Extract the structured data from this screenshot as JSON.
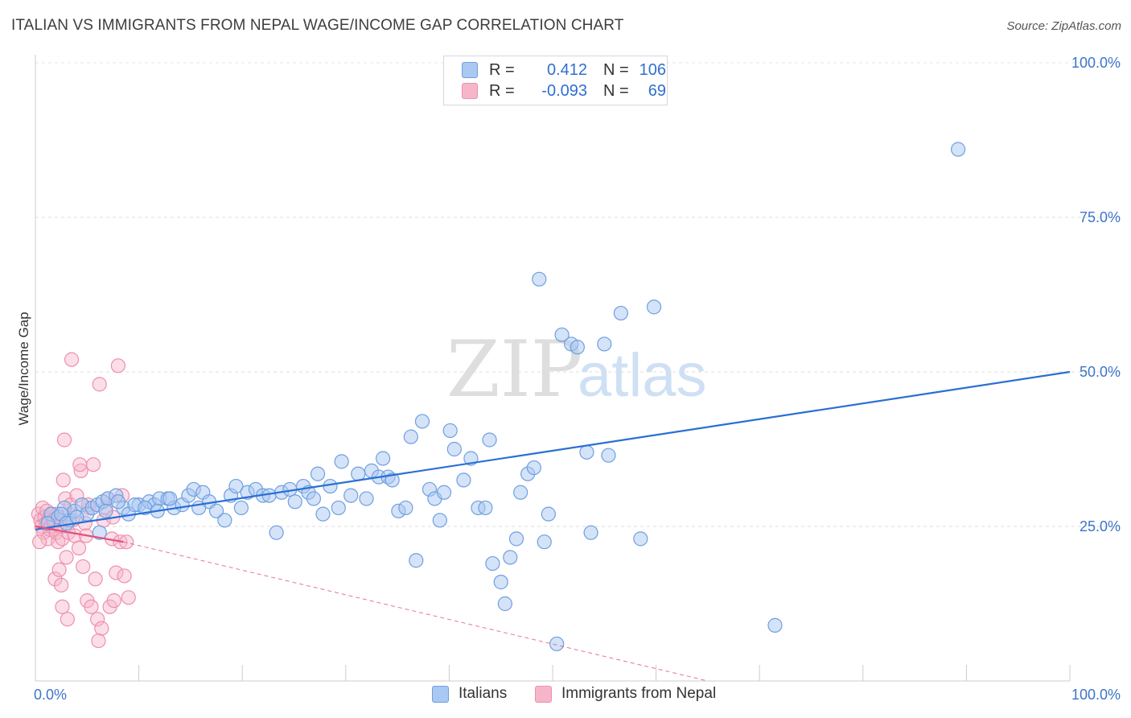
{
  "title": "ITALIAN VS IMMIGRANTS FROM NEPAL WAGE/INCOME GAP CORRELATION CHART",
  "source": "Source: ZipAtlas.com",
  "watermark": {
    "zip": "ZIP",
    "atlas": "atlas"
  },
  "legend": {
    "italians": {
      "r_label": "R =",
      "r_value": "0.412",
      "n_label": "N =",
      "n_value": "106"
    },
    "nepal": {
      "r_label": "R =",
      "r_value": "-0.093",
      "n_label": "N =",
      "n_value": "69"
    }
  },
  "bottom_legend": {
    "italians": "Italians",
    "nepal": "Immigrants from Nepal"
  },
  "colors": {
    "blue_fill": "#a9c8f2",
    "blue_stroke": "#6f9fe0",
    "blue_line": "#2a6fd3",
    "pink_fill": "#f6b6ca",
    "pink_stroke": "#ef8fae",
    "pink_line": "#e0517f",
    "axis_text": "#3d74c9"
  },
  "chart_data": {
    "type": "scatter",
    "title": "ITALIAN VS IMMIGRANTS FROM NEPAL WAGE/INCOME GAP CORRELATION CHART",
    "xlabel": "",
    "ylabel": "Wage/Income Gap",
    "xlim": [
      0,
      100
    ],
    "ylim": [
      0,
      100
    ],
    "x_tick_labels": [
      "0.0%",
      "100.0%"
    ],
    "y_ticks": [
      25,
      50,
      75,
      100
    ],
    "y_tick_labels": [
      "25.0%",
      "50.0%",
      "75.0%",
      "100.0%"
    ],
    "series": [
      {
        "name": "Italians",
        "points": [
          [
            1.5,
            27
          ],
          [
            2.2,
            26.5
          ],
          [
            2.8,
            28
          ],
          [
            3.3,
            26
          ],
          [
            3.8,
            27.5
          ],
          [
            4.5,
            28.5
          ],
          [
            5,
            27
          ],
          [
            5.5,
            28
          ],
          [
            6,
            28.5
          ],
          [
            6.5,
            29
          ],
          [
            7,
            29.5
          ],
          [
            7.8,
            30
          ],
          [
            8.5,
            28
          ],
          [
            9,
            27
          ],
          [
            10,
            28.5
          ],
          [
            11,
            29
          ],
          [
            11.5,
            28.5
          ],
          [
            12,
            29.5
          ],
          [
            12.8,
            29.5
          ],
          [
            13.4,
            28
          ],
          [
            14.2,
            28.5
          ],
          [
            14.8,
            30
          ],
          [
            15.3,
            31
          ],
          [
            16.2,
            30.5
          ],
          [
            16.8,
            29
          ],
          [
            17.5,
            27.5
          ],
          [
            18.3,
            26
          ],
          [
            18.9,
            30
          ],
          [
            19.4,
            31.5
          ],
          [
            19.9,
            28
          ],
          [
            20.5,
            30.5
          ],
          [
            21.3,
            31
          ],
          [
            22,
            30
          ],
          [
            22.6,
            30
          ],
          [
            23.3,
            24
          ],
          [
            23.8,
            30.5
          ],
          [
            24.6,
            31
          ],
          [
            25.1,
            29
          ],
          [
            25.9,
            31.5
          ],
          [
            26.4,
            30.5
          ],
          [
            26.9,
            29.5
          ],
          [
            27.3,
            33.5
          ],
          [
            27.8,
            27
          ],
          [
            28.5,
            31.5
          ],
          [
            29.3,
            28
          ],
          [
            29.6,
            35.5
          ],
          [
            30.5,
            30
          ],
          [
            31.2,
            33.5
          ],
          [
            32,
            29.5
          ],
          [
            32.5,
            34
          ],
          [
            33.2,
            33
          ],
          [
            33.6,
            36
          ],
          [
            34.1,
            33
          ],
          [
            34.5,
            32.5
          ],
          [
            35.1,
            27.5
          ],
          [
            35.8,
            28
          ],
          [
            36.3,
            39.5
          ],
          [
            36.8,
            19.5
          ],
          [
            37.4,
            42
          ],
          [
            38.1,
            31
          ],
          [
            38.6,
            29.5
          ],
          [
            39.1,
            26
          ],
          [
            39.5,
            30.5
          ],
          [
            40.1,
            40.5
          ],
          [
            40.5,
            37.5
          ],
          [
            41.4,
            32.5
          ],
          [
            42.1,
            36
          ],
          [
            42.8,
            28
          ],
          [
            43.5,
            28
          ],
          [
            43.9,
            39
          ],
          [
            44.2,
            19
          ],
          [
            45,
            16
          ],
          [
            45.4,
            12.5
          ],
          [
            45.9,
            20
          ],
          [
            46.5,
            23
          ],
          [
            46.9,
            30.5
          ],
          [
            47.6,
            33.5
          ],
          [
            48.2,
            34.5
          ],
          [
            48.7,
            65
          ],
          [
            49.2,
            22.5
          ],
          [
            49.6,
            27
          ],
          [
            50.4,
            6
          ],
          [
            50.9,
            56
          ],
          [
            51.8,
            54.5
          ],
          [
            52.4,
            54
          ],
          [
            53.3,
            37
          ],
          [
            53.7,
            24
          ],
          [
            55,
            54.5
          ],
          [
            55.4,
            36.5
          ],
          [
            56.6,
            59.5
          ],
          [
            58.5,
            23
          ],
          [
            59.8,
            60.5
          ],
          [
            71.5,
            9
          ],
          [
            89.2,
            86
          ],
          [
            2.5,
            27
          ],
          [
            3,
            25.5
          ],
          [
            4,
            26.5
          ],
          [
            6.8,
            27.5
          ],
          [
            8,
            29
          ],
          [
            9.6,
            28.5
          ],
          [
            10.6,
            28
          ],
          [
            11.8,
            27.5
          ],
          [
            13,
            29.5
          ],
          [
            15.8,
            28
          ],
          [
            1.2,
            25.5
          ],
          [
            6.2,
            24
          ]
        ],
        "trend": {
          "x": [
            0,
            100
          ],
          "y": [
            24.5,
            50
          ]
        }
      },
      {
        "name": "Immigrants from Nepal",
        "points": [
          [
            0.3,
            27
          ],
          [
            0.5,
            26
          ],
          [
            0.6,
            25
          ],
          [
            0.7,
            28
          ],
          [
            0.8,
            24
          ],
          [
            0.9,
            26.5
          ],
          [
            1,
            25.5
          ],
          [
            1.1,
            27.5
          ],
          [
            1.2,
            23
          ],
          [
            1.3,
            26
          ],
          [
            1.4,
            24.5
          ],
          [
            1.5,
            25
          ],
          [
            1.6,
            27
          ],
          [
            1.7,
            26
          ],
          [
            1.8,
            25.5
          ],
          [
            1.9,
            16.5
          ],
          [
            2,
            24
          ],
          [
            2.1,
            27
          ],
          [
            2.2,
            22.5
          ],
          [
            2.3,
            18
          ],
          [
            2.4,
            26
          ],
          [
            2.5,
            15.5
          ],
          [
            2.6,
            23
          ],
          [
            2.7,
            32.5
          ],
          [
            2.8,
            39
          ],
          [
            2.9,
            29.5
          ],
          [
            3,
            20
          ],
          [
            3.1,
            10
          ],
          [
            3.2,
            24
          ],
          [
            3.4,
            28.5
          ],
          [
            3.6,
            26
          ],
          [
            3.8,
            23.5
          ],
          [
            4,
            30
          ],
          [
            4.2,
            21.5
          ],
          [
            4.4,
            34
          ],
          [
            4.6,
            18.5
          ],
          [
            4.8,
            25.5
          ],
          [
            5,
            13
          ],
          [
            5.2,
            28
          ],
          [
            5.4,
            12
          ],
          [
            5.6,
            35
          ],
          [
            5.8,
            16.5
          ],
          [
            6,
            10
          ],
          [
            6.2,
            48
          ],
          [
            6.4,
            8.5
          ],
          [
            6.6,
            26
          ],
          [
            6.8,
            28
          ],
          [
            7,
            29.5
          ],
          [
            7.2,
            12
          ],
          [
            7.4,
            23
          ],
          [
            7.6,
            13
          ],
          [
            7.8,
            17.5
          ],
          [
            8,
            51
          ],
          [
            8.2,
            22.5
          ],
          [
            8.4,
            30
          ],
          [
            8.6,
            17
          ],
          [
            8.8,
            22.5
          ],
          [
            9,
            13.5
          ],
          [
            3.5,
            52
          ],
          [
            4.3,
            35
          ],
          [
            6.1,
            6.5
          ],
          [
            2.6,
            12
          ],
          [
            0.4,
            22.5
          ],
          [
            1.8,
            26
          ],
          [
            2.4,
            25
          ],
          [
            3.3,
            27
          ],
          [
            5.1,
            28.5
          ],
          [
            7.5,
            26.5
          ],
          [
            4.9,
            23.5
          ]
        ],
        "trend": {
          "x": [
            0,
            8.5
          ],
          "y": [
            25,
            22.5
          ]
        },
        "trend_extended": {
          "x": [
            8.5,
            65
          ],
          "y": [
            22.5,
            0
          ]
        }
      }
    ]
  }
}
